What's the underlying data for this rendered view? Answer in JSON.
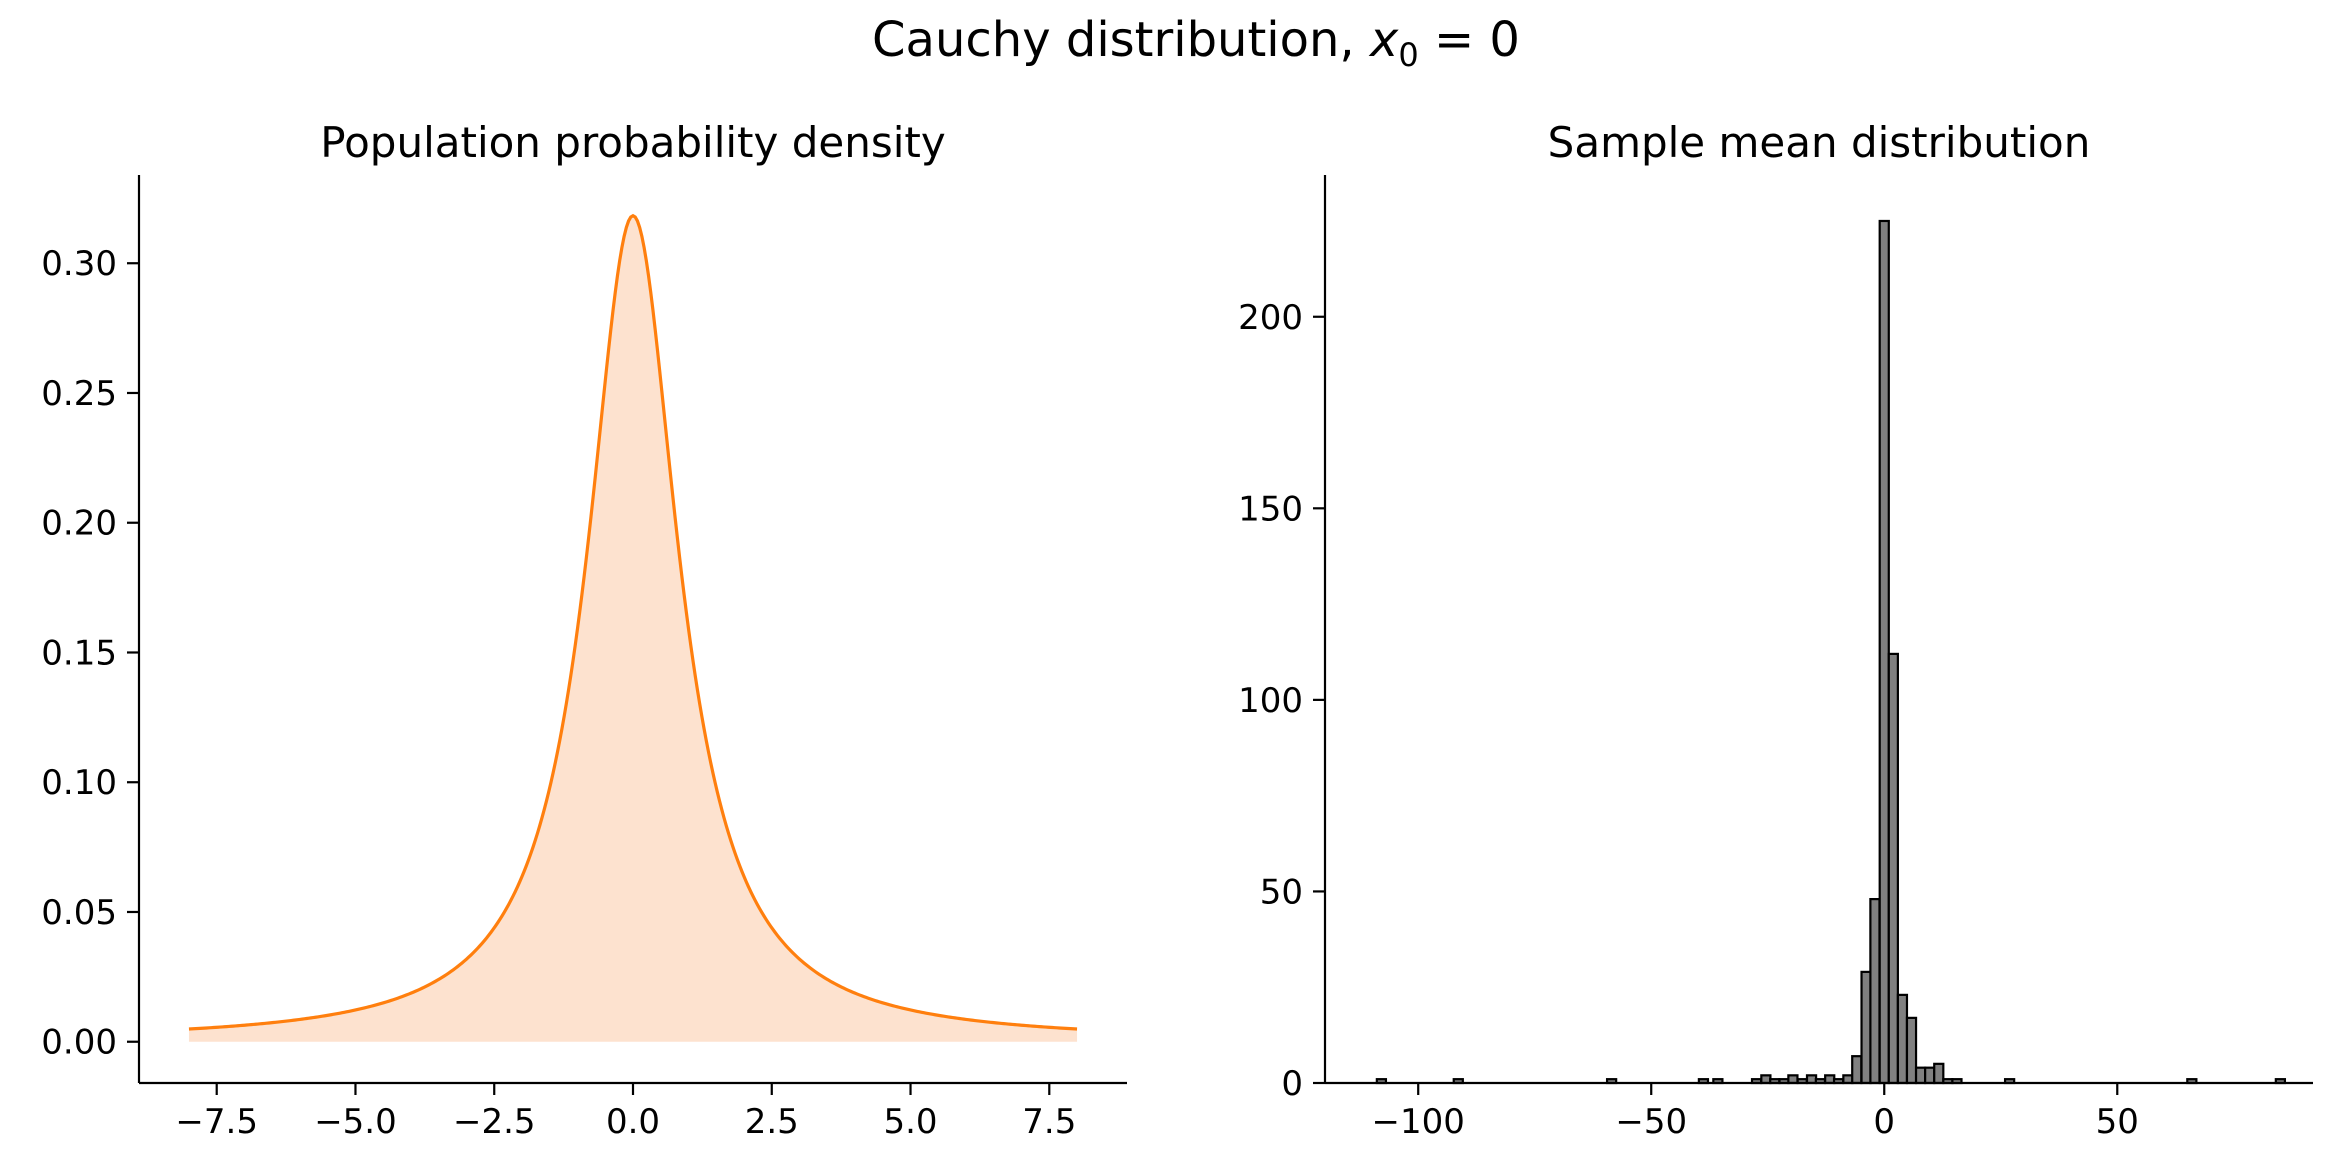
{
  "figure": {
    "title_prefix": "Cauchy distribution, ",
    "title_var": "x",
    "title_sub": "0",
    "title_suffix": " = 0"
  },
  "chart_data": [
    {
      "type": "area",
      "title": "Population probability density",
      "function": "cauchy_pdf",
      "x0": 0,
      "gamma": 1,
      "xlim": [
        -8.9,
        8.9
      ],
      "ylim": [
        -0.0159,
        0.334
      ],
      "xticks": [
        -7.5,
        -5.0,
        -2.5,
        0.0,
        2.5,
        5.0,
        7.5
      ],
      "xtick_labels": [
        "−7.5",
        "−5.0",
        "−2.5",
        "0.0",
        "2.5",
        "5.0",
        "7.5"
      ],
      "yticks": [
        0.0,
        0.05,
        0.1,
        0.15,
        0.2,
        0.25,
        0.3
      ],
      "ytick_labels": [
        "0.00",
        "0.05",
        "0.10",
        "0.15",
        "0.20",
        "0.25",
        "0.30"
      ],
      "x": [
        -8.0,
        -7.0,
        -6.0,
        -5.0,
        -4.0,
        -3.0,
        -2.5,
        -2.0,
        -1.5,
        -1.0,
        -0.75,
        -0.5,
        -0.25,
        0.0,
        0.25,
        0.5,
        0.75,
        1.0,
        1.5,
        2.0,
        2.5,
        3.0,
        4.0,
        5.0,
        6.0,
        7.0,
        8.0
      ],
      "y": [
        0.0049,
        0.0064,
        0.0086,
        0.0122,
        0.0187,
        0.0318,
        0.0439,
        0.0637,
        0.0979,
        0.1592,
        0.2037,
        0.2546,
        0.2996,
        0.3183,
        0.2996,
        0.2546,
        0.2037,
        0.1592,
        0.0979,
        0.0637,
        0.0439,
        0.0318,
        0.0187,
        0.0122,
        0.0086,
        0.0064,
        0.0049
      ],
      "line_color": "#ff7f0e",
      "fill_color": "#fde2cf",
      "grid": false
    },
    {
      "type": "bar",
      "title": "Sample mean distribution",
      "xlim": [
        -120,
        92
      ],
      "ylim": [
        0,
        237
      ],
      "xticks": [
        -100,
        -50,
        0,
        50
      ],
      "xtick_labels": [
        "−100",
        "−50",
        "0",
        "50"
      ],
      "yticks": [
        0,
        50,
        100,
        150,
        200
      ],
      "ytick_labels": [
        "0",
        "50",
        "100",
        "150",
        "200"
      ],
      "bin_width": 1.95,
      "bins": [
        {
          "x": -107.9,
          "count": 1
        },
        {
          "x": -91.4,
          "count": 1
        },
        {
          "x": -58.5,
          "count": 1
        },
        {
          "x": -38.8,
          "count": 1
        },
        {
          "x": -35.7,
          "count": 1
        },
        {
          "x": -27.4,
          "count": 1
        },
        {
          "x": -25.4,
          "count": 2
        },
        {
          "x": -23.5,
          "count": 1
        },
        {
          "x": -21.5,
          "count": 1
        },
        {
          "x": -19.6,
          "count": 2
        },
        {
          "x": -17.6,
          "count": 1
        },
        {
          "x": -15.6,
          "count": 2
        },
        {
          "x": -13.7,
          "count": 1
        },
        {
          "x": -11.7,
          "count": 2
        },
        {
          "x": -9.8,
          "count": 1
        },
        {
          "x": -7.8,
          "count": 2
        },
        {
          "x": -5.9,
          "count": 7
        },
        {
          "x": -3.9,
          "count": 29
        },
        {
          "x": -2.0,
          "count": 48
        },
        {
          "x": 0.0,
          "count": 225
        },
        {
          "x": 1.95,
          "count": 112
        },
        {
          "x": 3.9,
          "count": 23
        },
        {
          "x": 5.85,
          "count": 17
        },
        {
          "x": 7.8,
          "count": 4
        },
        {
          "x": 9.75,
          "count": 4
        },
        {
          "x": 11.7,
          "count": 5
        },
        {
          "x": 13.65,
          "count": 1
        },
        {
          "x": 15.6,
          "count": 1
        },
        {
          "x": 26.9,
          "count": 1
        },
        {
          "x": 66.0,
          "count": 1
        },
        {
          "x": 85.0,
          "count": 1
        }
      ],
      "bar_color": "#808080",
      "edge_color": "#000000",
      "grid": false
    }
  ]
}
